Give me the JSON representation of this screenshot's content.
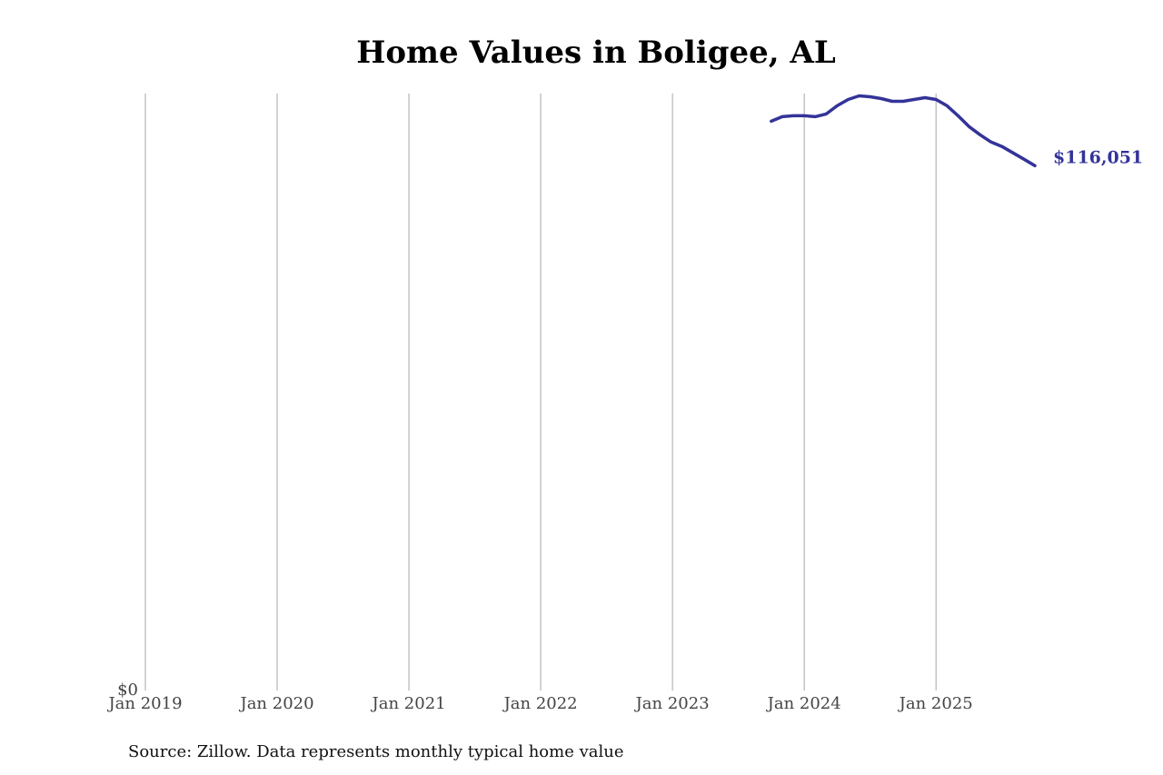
{
  "chart_data": {
    "type": "line",
    "title": "Home Values in Boligee, AL",
    "note": "Source: Zillow. Data represents monthly typical home value",
    "x": [
      "2023-10",
      "2023-11",
      "2023-12",
      "2024-01",
      "2024-02",
      "2024-03",
      "2024-04",
      "2024-05",
      "2024-06",
      "2024-07",
      "2024-08",
      "2024-09",
      "2024-10",
      "2024-11",
      "2024-12",
      "2025-01",
      "2025-02",
      "2025-03",
      "2025-04",
      "2025-05",
      "2025-06",
      "2025-07",
      "2025-08",
      "2025-09",
      "2025-10"
    ],
    "series": [
      {
        "color": "#333399",
        "values": [
          125900,
          126900,
          127100,
          127100,
          126900,
          127500,
          129300,
          130700,
          131500,
          131300,
          130900,
          130300,
          130300,
          130700,
          131100,
          130700,
          129300,
          127100,
          124700,
          122900,
          121300,
          120300,
          118900,
          117500,
          116051
        ],
        "value_labels": [
          null,
          null,
          null,
          null,
          null,
          null,
          null,
          null,
          null,
          null,
          null,
          null,
          null,
          null,
          null,
          null,
          null,
          null,
          null,
          null,
          null,
          null,
          null,
          null,
          "$116,051"
        ]
      }
    ],
    "xlim": [
      "2019-01",
      "2025-10"
    ],
    "xticks": [
      {
        "value": "2019-01",
        "label": "Jan 2019"
      },
      {
        "value": "2020-01",
        "label": "Jan 2020"
      },
      {
        "value": "2021-01",
        "label": "Jan 2021"
      },
      {
        "value": "2022-01",
        "label": "Jan 2022"
      },
      {
        "value": "2023-01",
        "label": "Jan 2023"
      },
      {
        "value": "2024-01",
        "label": "Jan 2024"
      },
      {
        "value": "2025-01",
        "label": "Jan 2025"
      }
    ],
    "ylim": [
      0,
      132000
    ],
    "yticks": [
      {
        "value": 0,
        "label": "$0"
      }
    ],
    "grid": true
  }
}
